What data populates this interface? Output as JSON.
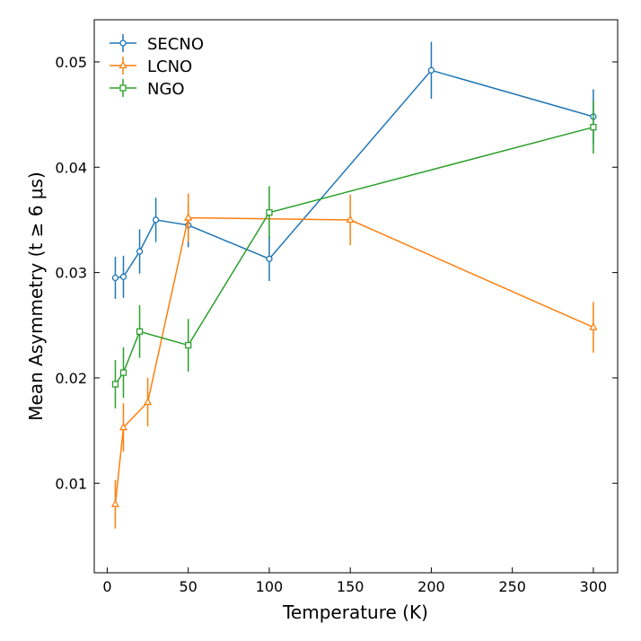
{
  "chart_data": {
    "type": "line",
    "title": "",
    "xlabel": "Temperature (K)",
    "ylabel": "Mean Asymmetry (t ≥ 6 μs)",
    "xlim": [
      -8,
      315
    ],
    "ylim": [
      0.0015,
      0.054
    ],
    "x_ticks": [
      0,
      50,
      100,
      150,
      200,
      250,
      300
    ],
    "x_tick_labels": [
      "0",
      "50",
      "100",
      "150",
      "200",
      "250",
      "300"
    ],
    "y_ticks": [
      0.01,
      0.02,
      0.03,
      0.04,
      0.05
    ],
    "y_tick_labels": [
      "0.01",
      "0.02",
      "0.03",
      "0.04",
      "0.05"
    ],
    "grid": false,
    "legend_position": "top-left",
    "series": [
      {
        "name": "SECNO",
        "color": "#1f77b4",
        "marker": "circle",
        "x": [
          5,
          10,
          20,
          30,
          50,
          100,
          200,
          300
        ],
        "y": [
          0.0295,
          0.0296,
          0.032,
          0.035,
          0.0345,
          0.0313,
          0.0492,
          0.0448
        ],
        "yerr": [
          0.002,
          0.002,
          0.0021,
          0.0021,
          0.0021,
          0.0021,
          0.0027,
          0.0026
        ]
      },
      {
        "name": "LCNO",
        "color": "#ff7f0e",
        "marker": "triangle",
        "x": [
          5,
          10,
          25,
          50,
          150,
          300
        ],
        "y": [
          0.008,
          0.0153,
          0.0177,
          0.0352,
          0.035,
          0.0248
        ],
        "yerr": [
          0.0023,
          0.0023,
          0.0023,
          0.0023,
          0.0024,
          0.0024
        ]
      },
      {
        "name": "NGO",
        "color": "#2ca02c",
        "marker": "square",
        "x": [
          5,
          10,
          20,
          50,
          100,
          300
        ],
        "y": [
          0.0194,
          0.0205,
          0.0244,
          0.0231,
          0.0357,
          0.0438
        ],
        "yerr": [
          0.0023,
          0.0024,
          0.0025,
          0.0025,
          0.0025,
          0.0025
        ]
      }
    ]
  }
}
